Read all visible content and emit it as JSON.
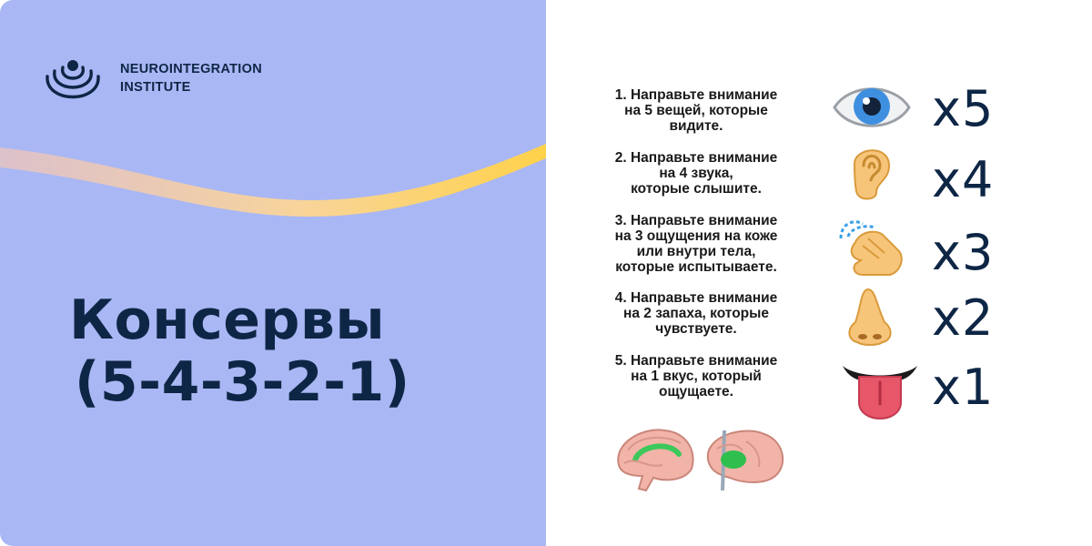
{
  "brand": {
    "line1": "NEUROINTEGRATION",
    "line2": "INSTITUTE"
  },
  "title": {
    "line1": "Консервы",
    "line2": "(5-4-3-2-1)"
  },
  "colors": {
    "left_background": "#a9b7f4",
    "navy": "#0e2645",
    "wave_start": "#f2c6b9",
    "wave_end": "#ffd24a"
  },
  "steps": [
    {
      "lines": [
        "1. Направьте внимание",
        "на 5 вещей, которые",
        "видите."
      ],
      "icon": "eye-icon",
      "count": "x5"
    },
    {
      "lines": [
        "2. Направьте внимание",
        "на 4 звука,",
        "которые слышите."
      ],
      "icon": "ear-icon",
      "count": "x4"
    },
    {
      "lines": [
        "3. Направьте внимание",
        "на 3 ощущения на коже",
        "или внутри тела,",
        "которые испытываете."
      ],
      "icon": "touch-hand-icon",
      "count": "x3"
    },
    {
      "lines": [
        "4. Направьте внимание",
        "на 2 запаха, которые",
        "чувствуете."
      ],
      "icon": "nose-icon",
      "count": "x2"
    },
    {
      "lines": [
        "5. Направьте внимание",
        "на 1 вкус, который",
        "ощущаете."
      ],
      "icon": "tongue-icon",
      "count": "x1"
    }
  ]
}
